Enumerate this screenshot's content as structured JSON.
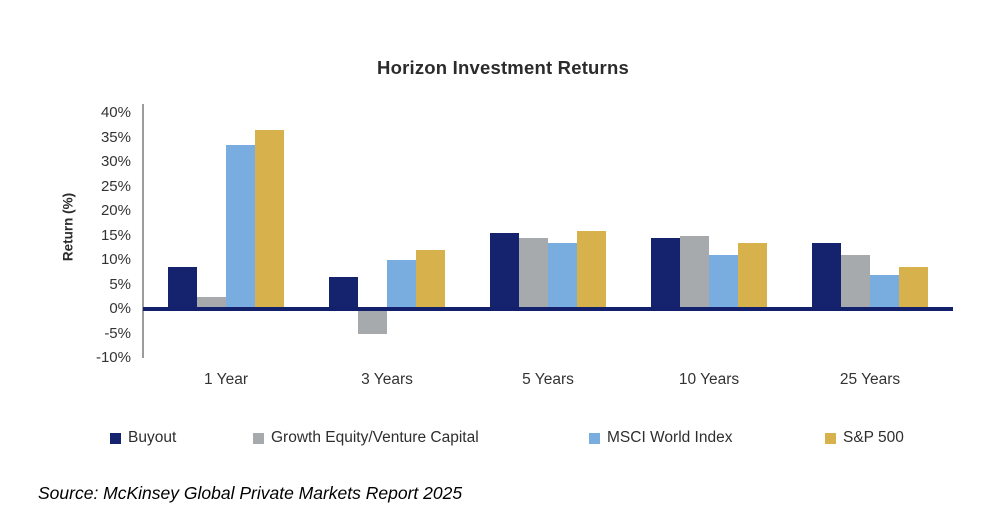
{
  "source": "Source: McKinsey Global Private Markets Report 2025",
  "chart_data": {
    "type": "bar",
    "title": "Horizon Investment Returns",
    "categories": [
      "1 Year",
      "3 Years",
      "5 Years",
      "10 Years",
      "25 Years"
    ],
    "series": [
      {
        "name": "Buyout",
        "color": "#15236f",
        "values": [
          8.5,
          6.5,
          15.5,
          14.5,
          13.5
        ]
      },
      {
        "name": "Growth Equity/Venture Capital",
        "color": "#a7aaad",
        "values": [
          2.5,
          -5,
          14.5,
          15,
          11
        ]
      },
      {
        "name": "MSCI World Index",
        "color": "#79ade0",
        "values": [
          33.5,
          10,
          13.5,
          11,
          7
        ]
      },
      {
        "name": "S&P 500",
        "color": "#d7b24c",
        "values": [
          36.5,
          12,
          16,
          13.5,
          8.5
        ]
      }
    ],
    "xlabel": "",
    "ylabel": "Return (%)",
    "ylim": [
      -10,
      40
    ],
    "ytick_step": 5,
    "ytick_labels": [
      "40%",
      "35%",
      "30%",
      "25%",
      "20%",
      "15%",
      "10%",
      "5%",
      "0%",
      "-5%",
      "-10%"
    ],
    "grid": false,
    "legend_position": "bottom",
    "axis_color": "#13206b"
  }
}
